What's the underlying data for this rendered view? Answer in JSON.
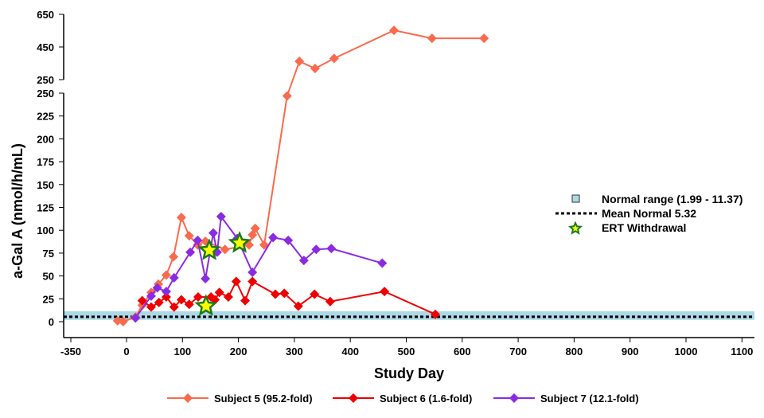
{
  "chart_data": {
    "type": "line",
    "xlabel": "Study Day",
    "ylabel": "a-Gal A (nmol/h/mL)",
    "xticks": [
      -350,
      0,
      100,
      200,
      300,
      400,
      500,
      600,
      700,
      800,
      900,
      1000,
      1100
    ],
    "yticks_lower": [
      0,
      25,
      50,
      75,
      100,
      125,
      150,
      175,
      200,
      225,
      250
    ],
    "yticks_upper": [
      250,
      450,
      650
    ],
    "y_break": 250,
    "xlim": [
      -350,
      1120
    ],
    "ylim": [
      0,
      650
    ],
    "grid": false,
    "legend_placement": "bottom",
    "normal_range": {
      "label": "Normal range (1.99 - 11.37)",
      "low": 1.99,
      "high": 11.37,
      "color": "#add8e6"
    },
    "mean_normal": {
      "label": "Mean Normal 5.32",
      "value": 5.32
    },
    "ert_withdrawal": {
      "label": "ERT Withdrawal",
      "points": [
        [
          142,
          17
        ],
        [
          148,
          78
        ],
        [
          202,
          86
        ]
      ]
    },
    "series": [
      {
        "name": "Subject 5 (95.2-fold)",
        "color": "#fa6a4c",
        "x": [
          -16,
          -6,
          16,
          28,
          44,
          57,
          71,
          84,
          98,
          112,
          127,
          141,
          176,
          219,
          225,
          230,
          246,
          287,
          309,
          337,
          371,
          478,
          546,
          639
        ],
        "y": [
          1,
          0,
          5,
          18,
          32,
          41,
          51,
          71,
          114,
          94,
          84,
          88,
          79,
          84,
          95,
          102,
          84,
          247,
          362,
          318,
          380,
          552,
          503,
          503
        ]
      },
      {
        "name": "Subject 6 (1.6-fold)",
        "color": "#ee0000",
        "x": [
          28,
          44,
          58,
          71,
          85,
          98,
          112,
          128,
          151,
          158,
          166,
          182,
          196,
          212,
          225,
          266,
          282,
          307,
          336,
          364,
          461,
          552
        ],
        "y": [
          23,
          16,
          21,
          27,
          16,
          24,
          19,
          27,
          27,
          24,
          32,
          27,
          44,
          23,
          44,
          30,
          31,
          17,
          30,
          22,
          33,
          8
        ]
      },
      {
        "name": "Subject 7 (12.1-fold)",
        "color": "#8a2be2",
        "x": [
          16,
          44,
          55,
          71,
          85,
          114,
          127,
          141,
          155,
          162,
          169,
          198,
          225,
          262,
          289,
          317,
          339,
          366,
          457
        ],
        "y": [
          4,
          28,
          37,
          33,
          48,
          76,
          89,
          47,
          97,
          76,
          115,
          91,
          54,
          92,
          89,
          67,
          79,
          80,
          64
        ]
      }
    ]
  }
}
